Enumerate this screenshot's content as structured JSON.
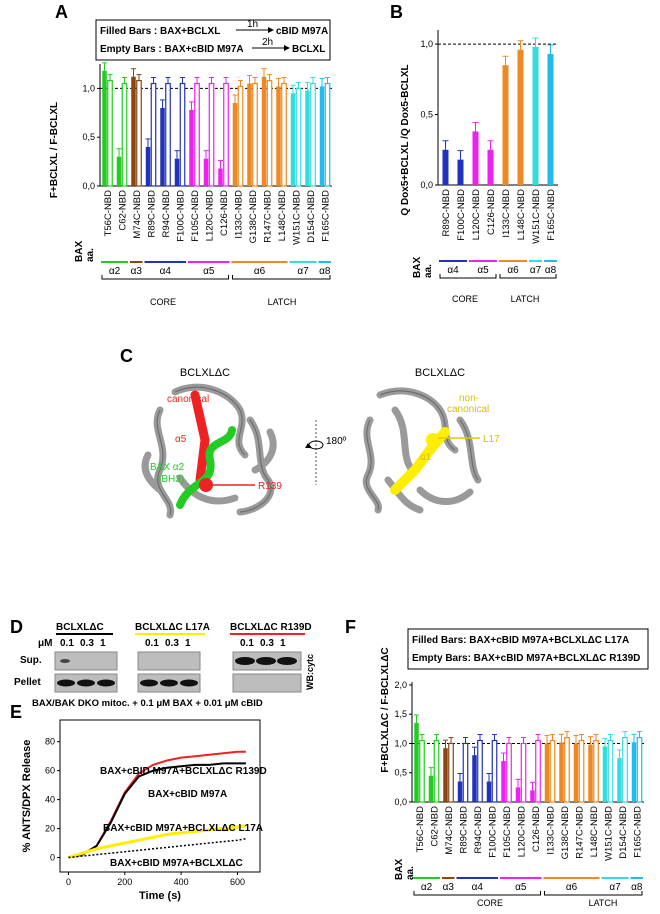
{
  "panels": {
    "A": "A",
    "B": "B",
    "C": "C",
    "D": "D",
    "E": "E",
    "F": "F"
  },
  "colors": {
    "a2": "#22cc22",
    "a3": "#8b4513",
    "a4": "#2233bb",
    "a5": "#ee22ee",
    "a6": "#ee8822",
    "a7": "#33dddd",
    "a8": "#22bbee",
    "bax": "#22aa22",
    "yellow": "#ffee00",
    "red": "#ee2222",
    "black": "#000000",
    "grey": "#b8b8b8"
  },
  "panel_a": {
    "legend_filled_label": "Filled Bars : BAX+BCLXL",
    "legend_filled_step": "1h",
    "legend_filled_target": "cBID M97A",
    "legend_empty_label": "Empty Bars : BAX+cBID M97A",
    "legend_empty_step": "2h",
    "legend_empty_target": "BCLXL",
    "ylabel": "F+BCLXL / F-BCLXL",
    "bax_label": "BAX",
    "aa_label": "aa.",
    "core_label": "CORE",
    "latch_label": "LATCH"
  },
  "panel_b": {
    "ylabel": "Q Dox5+BCLXL /Q Dox5-BCLXL",
    "bax_label": "BAX",
    "aa_label": "aa.",
    "core_label": "CORE",
    "latch_label": "LATCH"
  },
  "panel_c": {
    "left_title": "BCLXLΔC",
    "right_title": "BCLXLΔC",
    "canonical": "canonical",
    "alpha5": "α5",
    "bax_a2": "BAX α2",
    "bh3": "(BH3)",
    "r139": "R139",
    "rotation": "180º",
    "non_canonical_1": "non-",
    "non_canonical_2": "canonical",
    "l17": "L17",
    "alpha1": "α1"
  },
  "panel_d": {
    "groups": [
      "BCLXLΔC",
      "BCLXLΔC L17A",
      "BCLXLΔC R139D"
    ],
    "um_label": "μM",
    "concentrations": [
      "0.1",
      "0.3",
      "1"
    ],
    "sup_label": "Sup.",
    "pellet_label": "Pellet",
    "wb_label": "WB:cytc",
    "footer": "BAX/BAK DKO mitoc. + 0.1 μM BAX + 0.01 μM cBID"
  },
  "panel_f": {
    "legend_filled": "Filled Bars: BAX+cBID M97A+BCLXLΔC L17A",
    "legend_empty": "Empty Bars: BAX+cBID M97A+BCLXLΔC R139D",
    "ylabel": "F+BCLXLΔC / F-BCLXLΔC",
    "bax_label": "BAX",
    "aa_label": "aa.",
    "core_label": "CORE",
    "latch_label": "LATCH"
  },
  "chart_data": [
    {
      "id": "A",
      "type": "bar",
      "title": "",
      "ylabel": "F+BCLXL / F-BCLXL",
      "xlabel": "",
      "ylim": [
        0,
        1.25
      ],
      "yticks": [
        "0,0",
        "0,5",
        "1,0"
      ],
      "reference_line": 1.0,
      "categories": [
        "T56C-NBD",
        "C62-NBD",
        "M74C-NBD",
        "R89C-NBD",
        "R94C-NBD",
        "F100C-NBD",
        "F105C-NBD",
        "L120C-NBD",
        "C126-NBD",
        "I133C-NBD",
        "G138C-NBD",
        "R147C-NBD",
        "L148C-NBD",
        "W151C-NBD",
        "D154C-NBD",
        "F165C-NBD"
      ],
      "helix": [
        "α2",
        "α2",
        "α3",
        "α4",
        "α4",
        "α4",
        "α5",
        "α5",
        "α5",
        "α6",
        "α6",
        "α6",
        "α6",
        "α7",
        "α7",
        "α8"
      ],
      "series": [
        {
          "name": "Filled Bars: BAX+BCLXL then cBID M97A",
          "values": [
            1.18,
            0.3,
            1.12,
            0.4,
            0.8,
            0.28,
            0.78,
            0.28,
            0.18,
            0.85,
            1.05,
            1.12,
            1.02,
            0.95,
            0.98,
            1.02
          ]
        },
        {
          "name": "Empty Bars: BAX+cBID M97A then BCLXL",
          "values": [
            1.08,
            1.05,
            1.08,
            1.05,
            1.05,
            1.05,
            1.05,
            1.05,
            1.05,
            1.02,
            1.05,
            1.08,
            1.05,
            1.0,
            1.05,
            1.05
          ]
        }
      ]
    },
    {
      "id": "B",
      "type": "bar",
      "title": "",
      "ylabel": "Q Dox5+BCLXL /Q Dox5-BCLXL",
      "xlabel": "",
      "ylim": [
        0,
        1.1
      ],
      "yticks": [
        "0,0",
        "0,5",
        "1,0"
      ],
      "reference_line": 1.0,
      "categories": [
        "R89C-NBD",
        "F100C-NBD",
        "L120C-NBD",
        "C126-NBD",
        "I133C-NBD",
        "L148C-NBD",
        "W151C-NBD",
        "F165C-NBD"
      ],
      "helix": [
        "α4",
        "α4",
        "α5",
        "α5",
        "α6",
        "α6",
        "α7",
        "α8"
      ],
      "values": [
        0.25,
        0.18,
        0.38,
        0.25,
        0.85,
        0.96,
        0.98,
        0.93
      ]
    },
    {
      "id": "E",
      "type": "line",
      "title": "",
      "xlabel": "Time (s)",
      "ylabel": "% ANTS/DPX Release",
      "xlim": [
        -30,
        680
      ],
      "ylim": [
        -10,
        95
      ],
      "xticks": [
        "0",
        "200",
        "400",
        "600"
      ],
      "yticks": [
        "0",
        "20",
        "40",
        "60",
        "80"
      ],
      "series": [
        {
          "name": "BAX+cBID M97A+BCLXLΔC R139D",
          "x": [
            0,
            50,
            100,
            150,
            200,
            250,
            300,
            350,
            400,
            450,
            500,
            550,
            600,
            630
          ],
          "y": [
            0,
            2,
            8,
            25,
            45,
            58,
            64,
            67,
            69,
            70,
            71,
            72,
            73,
            73
          ]
        },
        {
          "name": "BAX+cBID M97A",
          "x": [
            0,
            50,
            100,
            150,
            200,
            250,
            300,
            350,
            400,
            450,
            500,
            550,
            600,
            630
          ],
          "y": [
            0,
            2,
            8,
            24,
            44,
            56,
            60,
            62,
            63,
            64,
            64,
            65,
            65,
            65
          ]
        },
        {
          "name": "BAX+cBID M97A+BCLXLΔC L17A",
          "x": [
            0,
            50,
            100,
            150,
            200,
            250,
            300,
            350,
            400,
            450,
            500,
            550,
            600,
            630
          ],
          "y": [
            0,
            3,
            6,
            8,
            10,
            12,
            14,
            16,
            17,
            18,
            19,
            20,
            21,
            22
          ]
        },
        {
          "name": "BAX+cBID M97A+BCLXLΔC",
          "x": [
            0,
            50,
            100,
            150,
            200,
            250,
            300,
            350,
            400,
            450,
            500,
            550,
            600,
            630
          ],
          "y": [
            0,
            1,
            2,
            3,
            4,
            5,
            6,
            7,
            8,
            9,
            10,
            11,
            12,
            13
          ]
        }
      ]
    },
    {
      "id": "F",
      "type": "bar",
      "title": "",
      "ylabel": "F+BCLXLΔC / F-BCLXLΔC",
      "xlabel": "",
      "ylim": [
        0,
        2.05
      ],
      "yticks": [
        "0,0",
        "0,5",
        "1,0",
        "1,5",
        "2,0"
      ],
      "reference_line": 1.0,
      "categories": [
        "T56C-NBD",
        "C62-NBD",
        "M74C-NBD",
        "R89C-NBD",
        "R94C-NBD",
        "F100C-NBD",
        "F105C-NBD",
        "L120C-NBD",
        "C126-NBD",
        "I133C-NBD",
        "G138C-NBD",
        "R147C-NBD",
        "L148C-NBD",
        "W151C-NBD",
        "D154C-NBD",
        "F165C-NBD"
      ],
      "helix": [
        "α2",
        "α2",
        "α3",
        "α4",
        "α4",
        "α4",
        "α5",
        "α5",
        "α5",
        "α6",
        "α6",
        "α6",
        "α6",
        "α7",
        "α7",
        "α8"
      ],
      "series": [
        {
          "name": "Filled Bars: BAX+cBID M97A+BCLXLΔC L17A",
          "values": [
            1.35,
            0.45,
            0.92,
            0.35,
            0.8,
            0.35,
            0.7,
            0.25,
            0.2,
            1.0,
            1.02,
            1.0,
            0.98,
            0.95,
            0.75,
            1.02
          ]
        },
        {
          "name": "Empty Bars: BAX+cBID M97A+BCLXLΔC R139D",
          "values": [
            1.05,
            1.05,
            1.0,
            1.0,
            1.05,
            1.05,
            1.0,
            1.0,
            1.05,
            1.05,
            1.1,
            1.05,
            1.05,
            1.05,
            1.1,
            1.1
          ]
        }
      ]
    }
  ]
}
